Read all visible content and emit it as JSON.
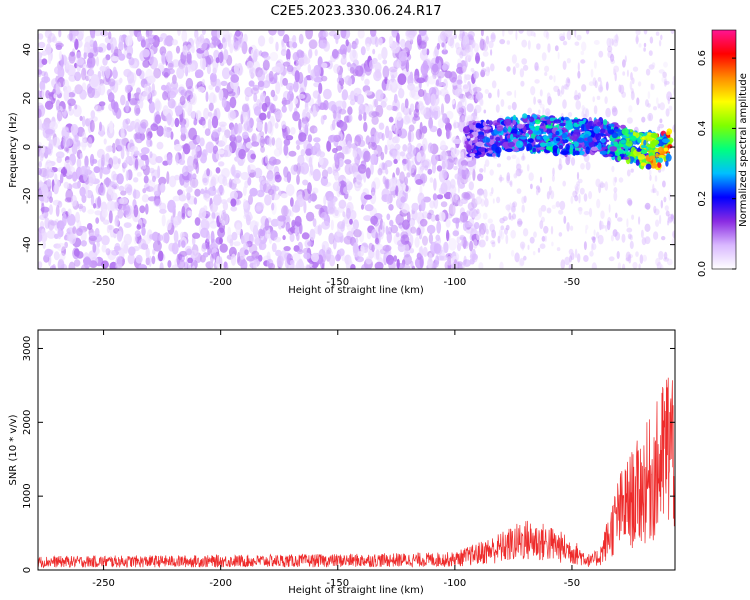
{
  "title": "C2E5.2023.330.06.24.R17",
  "chart_data": [
    {
      "type": "heatmap",
      "title": "C2E5.2023.330.06.24.R17",
      "xlabel": "Height of straight line (km)",
      "ylabel": "Frequency (Hz)",
      "xlim": [
        -278,
        -6
      ],
      "ylim": [
        -50,
        48
      ],
      "x_ticks": [
        -250,
        -200,
        -150,
        -100,
        -50
      ],
      "y_ticks": [
        -40,
        -20,
        0,
        20,
        40
      ],
      "grid": false,
      "colorbar": {
        "label": "Normalized spectral amplitude",
        "range": [
          0.0,
          0.68
        ],
        "ticks": [
          0.0,
          0.2,
          0.4,
          0.6
        ],
        "colormap": [
          "#ffffff",
          "#d9b8ff",
          "#8a2be2",
          "#0000ff",
          "#00bfff",
          "#00ff7f",
          "#7fff00",
          "#ffff00",
          "#ff8c00",
          "#ff0000",
          "#ff1493"
        ]
      },
      "features": {
        "background_noise": {
          "x_range": [
            -278,
            -100
          ],
          "freq_range": [
            -50,
            48
          ],
          "amplitude": 0.08
        },
        "signal_band": [
          {
            "x": -95,
            "freq": 3,
            "amplitude": 0.18
          },
          {
            "x": -80,
            "freq": 4,
            "amplitude": 0.26
          },
          {
            "x": -70,
            "freq": 6,
            "amplitude": 0.3
          },
          {
            "x": -60,
            "freq": 5,
            "amplitude": 0.32
          },
          {
            "x": -50,
            "freq": 4,
            "amplitude": 0.3
          },
          {
            "x": -40,
            "freq": 5,
            "amplitude": 0.25
          },
          {
            "x": -30,
            "freq": 2,
            "amplitude": 0.35
          },
          {
            "x": -20,
            "freq": -1,
            "amplitude": 0.45
          },
          {
            "x": -12,
            "freq": -1,
            "amplitude": 0.62
          },
          {
            "x": -8,
            "freq": 0,
            "amplitude": 0.55
          }
        ]
      }
    },
    {
      "type": "line",
      "xlabel": "Height of straight line (km)",
      "ylabel": "SNR (10 * v/v)",
      "xlim": [
        -278,
        -6
      ],
      "ylim": [
        0,
        3250
      ],
      "x_ticks": [
        -250,
        -200,
        -150,
        -100,
        -50
      ],
      "y_ticks": [
        0,
        1000,
        2000,
        3000
      ],
      "grid": false,
      "series": [
        {
          "color": "#ee2b2b",
          "x": [
            -278,
            -250,
            -200,
            -150,
            -120,
            -100,
            -90,
            -80,
            -70,
            -60,
            -50,
            -42,
            -38,
            -30,
            -25,
            -20,
            -15,
            -12,
            -10,
            -8,
            -6
          ],
          "y": [
            130,
            135,
            140,
            150,
            160,
            170,
            260,
            360,
            480,
            430,
            300,
            140,
            220,
            900,
            1100,
            1300,
            1500,
            1700,
            1900,
            2100,
            1800
          ]
        }
      ]
    }
  ]
}
